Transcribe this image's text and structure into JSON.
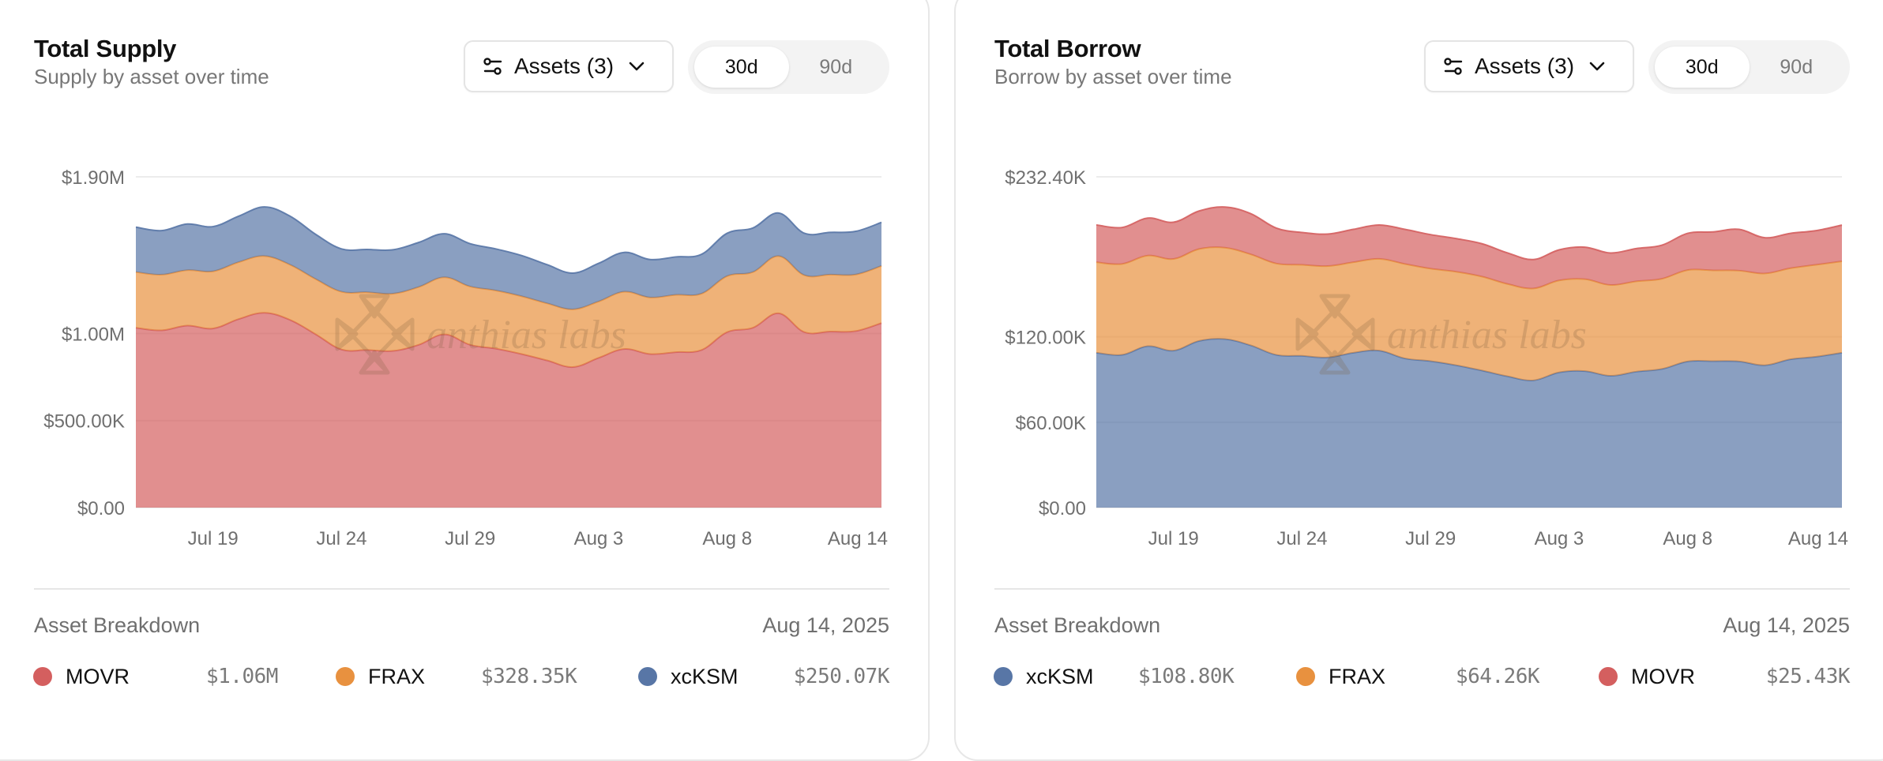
{
  "colors": {
    "MOVR": "#d45f5f",
    "FRAX": "#e8913f",
    "xcKSM": "#5876a6",
    "area_opacity": 0.7
  },
  "watermark": "anthias labs",
  "panels": [
    {
      "id": "supply",
      "title": "Total Supply",
      "subtitle": "Supply by asset over time",
      "assets_button": "Assets (3)",
      "ranges": [
        {
          "label": "30d",
          "active": true
        },
        {
          "label": "90d",
          "active": false
        }
      ],
      "breakdown_label": "Asset Breakdown",
      "breakdown_date": "Aug 14, 2025",
      "legend": [
        {
          "name": "MOVR",
          "value": "$1.06M"
        },
        {
          "name": "FRAX",
          "value": "$328.35K"
        },
        {
          "name": "xcKSM",
          "value": "$250.07K"
        }
      ]
    },
    {
      "id": "borrow",
      "title": "Total Borrow",
      "subtitle": "Borrow by asset over time",
      "assets_button": "Assets (3)",
      "ranges": [
        {
          "label": "30d",
          "active": true
        },
        {
          "label": "90d",
          "active": false
        }
      ],
      "breakdown_label": "Asset Breakdown",
      "breakdown_date": "Aug 14, 2025",
      "legend": [
        {
          "name": "xcKSM",
          "value": "$108.80K"
        },
        {
          "name": "FRAX",
          "value": "$64.26K"
        },
        {
          "name": "MOVR",
          "value": "$25.43K"
        }
      ]
    }
  ],
  "chart_data": [
    {
      "type": "area",
      "stacked": true,
      "title": "Total Supply",
      "subtitle": "Supply by asset over time",
      "xlabel": "",
      "ylabel": "",
      "x_start": "Jul 16",
      "x_end": "Aug 14",
      "x_ticks": [
        "Jul 19",
        "Jul 24",
        "Jul 29",
        "Aug 3",
        "Aug 8",
        "Aug 14"
      ],
      "x_tick_index": [
        3,
        8,
        13,
        18,
        23,
        29
      ],
      "y_ticks": [
        {
          "value": 0,
          "label": "$0.00"
        },
        {
          "value": 500000,
          "label": "$500.00K"
        },
        {
          "value": 1000000,
          "label": "$1.00M"
        },
        {
          "value": 1900000,
          "label": "$1.90M"
        }
      ],
      "ylim": [
        0,
        1900000
      ],
      "grid": true,
      "units": "USD",
      "series": [
        {
          "name": "MOVR",
          "values": [
            1033000,
            1018000,
            1045000,
            1029000,
            1083000,
            1119000,
            1078000,
            995000,
            908000,
            905000,
            900000,
            935000,
            995000,
            935000,
            913000,
            882000,
            845000,
            807000,
            860000,
            911000,
            882000,
            893000,
            905000,
            1008000,
            1033000,
            1116000,
            1008000,
            1011000,
            1014000,
            1060000
          ]
        },
        {
          "name": "FRAX",
          "values": [
            320000,
            320000,
            319000,
            328000,
            327000,
            326000,
            317000,
            317000,
            332000,
            332000,
            329000,
            332000,
            328000,
            335000,
            334000,
            332000,
            328000,
            332000,
            324000,
            329000,
            325000,
            329000,
            324000,
            322000,
            320000,
            329000,
            327000,
            327000,
            325000,
            328350
          ]
        },
        {
          "name": "xcKSM",
          "values": [
            258000,
            253000,
            265000,
            257000,
            264000,
            282000,
            279000,
            257000,
            246000,
            246000,
            252000,
            256000,
            250000,
            246000,
            239000,
            234000,
            222000,
            208000,
            219000,
            226000,
            218000,
            218000,
            226000,
            246000,
            253000,
            247000,
            241000,
            243000,
            248000,
            250070
          ]
        }
      ]
    },
    {
      "type": "area",
      "stacked": true,
      "title": "Total Borrow",
      "subtitle": "Borrow by asset over time",
      "xlabel": "",
      "ylabel": "",
      "x_start": "Jul 16",
      "x_end": "Aug 14",
      "x_ticks": [
        "Jul 19",
        "Jul 24",
        "Jul 29",
        "Aug 3",
        "Aug 8",
        "Aug 14"
      ],
      "x_tick_index": [
        3,
        8,
        13,
        18,
        23,
        29
      ],
      "y_ticks": [
        {
          "value": 0,
          "label": "$0.00"
        },
        {
          "value": 60000,
          "label": "$60.00K"
        },
        {
          "value": 120000,
          "label": "$120.00K"
        },
        {
          "value": 232400,
          "label": "$232.40K"
        }
      ],
      "ylim": [
        0,
        232400
      ],
      "grid": true,
      "units": "USD",
      "series": [
        {
          "name": "xcKSM",
          "values": [
            108800,
            107300,
            113400,
            110300,
            117100,
            118400,
            114000,
            107300,
            106600,
            105500,
            108800,
            110300,
            104800,
            102900,
            100000,
            96300,
            92200,
            89400,
            95000,
            95900,
            92600,
            95500,
            97400,
            102700,
            102900,
            102700,
            100000,
            104200,
            106000,
            108800
          ]
        },
        {
          "name": "FRAX",
          "values": [
            63600,
            63900,
            63700,
            64400,
            64600,
            64200,
            64000,
            64200,
            64000,
            64200,
            63600,
            64500,
            66400,
            65000,
            65700,
            66000,
            64900,
            64600,
            64600,
            64600,
            63800,
            63500,
            63400,
            64200,
            63800,
            63800,
            64500,
            64000,
            64600,
            64260
          ]
        },
        {
          "name": "MOVR",
          "values": [
            26200,
            25600,
            26300,
            25800,
            26700,
            28600,
            28600,
            24900,
            22700,
            22500,
            23100,
            23800,
            24300,
            23900,
            23300,
            23100,
            21800,
            20300,
            21500,
            22500,
            22500,
            23000,
            23600,
            25800,
            27000,
            29000,
            25100,
            24500,
            24000,
            25430
          ]
        }
      ]
    }
  ]
}
